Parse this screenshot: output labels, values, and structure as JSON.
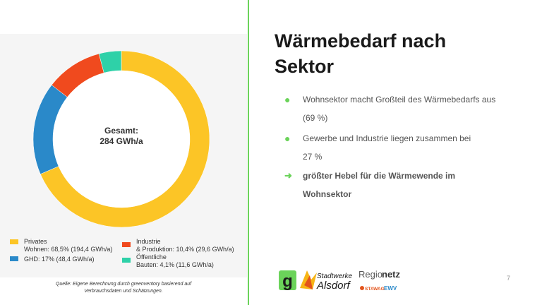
{
  "slide": {
    "title_line1": "Wärmebedarf nach",
    "title_line2": "Sektor",
    "page_number": "7"
  },
  "bullets": [
    {
      "line1": "Wohnsektor macht Großteil des Wärmebedarfs aus",
      "line2": "(69 %)"
    },
    {
      "line1": "Gewerbe und Industrie liegen zusammen bei",
      "line2": "27 %"
    }
  ],
  "conclusion": {
    "line1": "größter Hebel für die Wärmewende im",
    "line2": "Wohnsektor"
  },
  "chart_data": {
    "type": "pie",
    "center_label_line1": "Gesamt:",
    "center_label_line2": "284 GWh/a",
    "categories": [
      "Privates Wohnen",
      "GHD",
      "Industrie & Produktion",
      "Öffentliche Bauten"
    ],
    "values": [
      68.5,
      17,
      10.4,
      4.1
    ],
    "absolute_gwh": [
      194.4,
      48.4,
      29.6,
      11.6
    ],
    "colors": [
      "#fcc526",
      "#2a89c9",
      "#f04a1e",
      "#2ed1a8"
    ],
    "legend": [
      {
        "line1": "Privates",
        "line2": "Wohnen: 68,5% (194,4 GWh/a)"
      },
      {
        "line1": "GHD: 17% (48,4 GWh/a)",
        "line2": ""
      },
      {
        "line1": "Industrie",
        "line2": "& Produktion: 10,4% (29,6 GWh/a)"
      },
      {
        "line1": "Öffentliche",
        "line2": "Bauten: 4,1% (11,6 GWh/a)"
      }
    ]
  },
  "source_line1": "Quelle: Eigene Berechnung durch greenventory basierend auf",
  "source_line2": "Verbrauchsdaten und Schätzungen.",
  "logos": {
    "g_logo": "g",
    "stadtwerke_line1": "Stadtwerke",
    "stadtwerke_line2": "Alsdorf",
    "regio": "Regio",
    "netz": "netz",
    "stawag": "STAWAG",
    "ewv": "EWV"
  }
}
